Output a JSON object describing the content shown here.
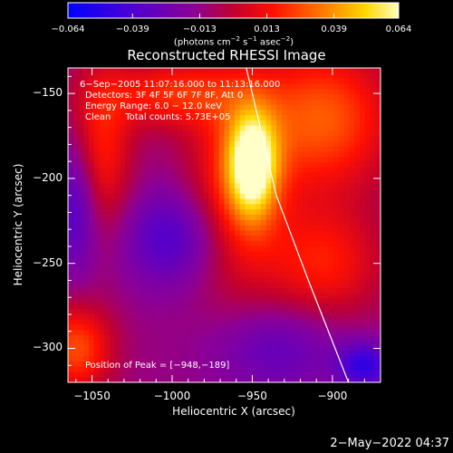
{
  "chart_data": {
    "type": "heatmap",
    "title": "Reconstructed RHESSI Image",
    "xlabel": "Heliocentric X (arcsec)",
    "ylabel": "Heliocentric Y (arcsec)",
    "xlim": [
      -1065,
      -870
    ],
    "ylim": [
      -320,
      -135
    ],
    "xticks": [
      {
        "value": -1050,
        "label": "−1050"
      },
      {
        "value": -1000,
        "label": "−1000"
      },
      {
        "value": -950,
        "label": "−950"
      },
      {
        "value": -900,
        "label": "−900"
      }
    ],
    "yticks": [
      {
        "value": -150,
        "label": "−150"
      },
      {
        "value": -200,
        "label": "−200"
      },
      {
        "value": -250,
        "label": "−250"
      },
      {
        "value": -300,
        "label": "−300"
      }
    ],
    "colorbar": {
      "range": [
        -0.064,
        0.064
      ],
      "ticks": [
        {
          "value": -0.064,
          "label": "−0.064"
        },
        {
          "value": -0.039,
          "label": "−0.039"
        },
        {
          "value": -0.013,
          "label": "−0.013"
        },
        {
          "value": 0.013,
          "label": "0.013"
        },
        {
          "value": 0.039,
          "label": "0.039"
        },
        {
          "value": 0.064,
          "label": "0.064"
        }
      ],
      "units_prefix": "(photons cm",
      "units_exp1": "−2",
      "units_mid": " s",
      "units_exp2": "−1",
      "units_mid2": " asec",
      "units_exp3": "−2",
      "units_suffix": ")",
      "colors": [
        "#0000ff",
        "#4d00d9",
        "#8a0099",
        "#c0002a",
        "#ff0000",
        "#ff8000",
        "#ffd000",
        "#ffffff"
      ]
    },
    "sources": [
      {
        "x": -950,
        "y": -192,
        "sx": 11,
        "sy": 22,
        "amp": 0.065
      },
      {
        "x": -960,
        "y": -205,
        "sx": 22,
        "sy": 45,
        "amp": 0.03
      },
      {
        "x": -905,
        "y": -165,
        "sx": 30,
        "sy": 30,
        "amp": 0.04
      },
      {
        "x": -1000,
        "y": -150,
        "sx": 30,
        "sy": 14,
        "amp": 0.03
      },
      {
        "x": -1045,
        "y": -185,
        "sx": 14,
        "sy": 35,
        "amp": 0.03
      },
      {
        "x": -905,
        "y": -250,
        "sx": 26,
        "sy": 24,
        "amp": 0.028
      },
      {
        "x": -1060,
        "y": -300,
        "sx": 16,
        "sy": 18,
        "amp": 0.038
      },
      {
        "x": -1000,
        "y": -235,
        "sx": 22,
        "sy": 20,
        "amp": -0.028
      },
      {
        "x": -1060,
        "y": -215,
        "sx": 10,
        "sy": 28,
        "amp": -0.03
      },
      {
        "x": -880,
        "y": -310,
        "sx": 12,
        "sy": 10,
        "amp": -0.035
      },
      {
        "x": -935,
        "y": -300,
        "sx": 28,
        "sy": 18,
        "amp": -0.02
      }
    ],
    "limb_points": [
      [
        -955,
        -130
      ],
      [
        -935,
        -210
      ],
      [
        -915,
        -260
      ],
      [
        -890,
        -320
      ]
    ],
    "peak": {
      "x": -948,
      "y": -189
    }
  },
  "annotations": {
    "time_range": "6−Sep−2005 11:07:16.000 to 11:13:16.000",
    "detectors": "Detectors: 3F 4F 5F 6F 7F 8F, Att 0",
    "energy": "Energy Range: 6.0 − 12.0 keV",
    "clean": "Clean     Total counts: 5.73E+05",
    "peak": "Position of Peak = [−948,−189]"
  },
  "timestamp": "2−May−2022 04:37"
}
